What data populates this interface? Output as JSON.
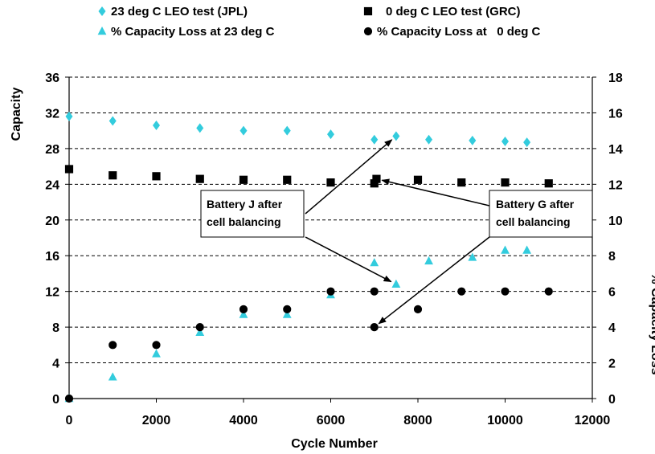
{
  "chart_data": {
    "type": "scatter",
    "xlabel": "Cycle Number",
    "ylabel": "Capacity",
    "y2label": "% Capacity Loss",
    "xlim": [
      0,
      12000
    ],
    "ylim": [
      0,
      36
    ],
    "y2lim": [
      0,
      18
    ],
    "x_ticks": [
      "0",
      "2000",
      "4000",
      "6000",
      "8000",
      "10000",
      "12000"
    ],
    "y_ticks": [
      "0",
      "4",
      "8",
      "12",
      "16",
      "20",
      "24",
      "28",
      "32",
      "36"
    ],
    "y2_ticks": [
      "0",
      "2",
      "4",
      "6",
      "8",
      "10",
      "12",
      "14",
      "16",
      "18"
    ],
    "grid": "horizontal dashed",
    "legend_position": "top",
    "series": [
      {
        "name": "23 deg C LEO test (JPL)",
        "axis": "left",
        "marker": "diamond",
        "color": "#33ccdd",
        "x": [
          0,
          1000,
          2000,
          3000,
          4000,
          5000,
          6000,
          7000,
          7500,
          8250,
          9250,
          10000,
          10500
        ],
        "y": [
          31.6,
          31.1,
          30.6,
          30.3,
          30.0,
          30.0,
          29.6,
          29.0,
          29.4,
          29.0,
          28.9,
          28.8,
          28.7
        ]
      },
      {
        "name": "0 deg C LEO test (GRC)",
        "axis": "left",
        "marker": "square",
        "color": "#000000",
        "x": [
          0,
          1000,
          2000,
          3000,
          4000,
          5000,
          6000,
          7000,
          7050,
          8000,
          9000,
          10000,
          11000
        ],
        "y": [
          25.7,
          25.0,
          24.9,
          24.6,
          24.5,
          24.5,
          24.2,
          24.1,
          24.6,
          24.5,
          24.2,
          24.2,
          24.1
        ]
      },
      {
        "name": "% Capacity Loss at 23 deg C",
        "axis": "right",
        "marker": "triangle",
        "color": "#33ccdd",
        "x": [
          0,
          1000,
          2000,
          3000,
          4000,
          5000,
          6000,
          7000,
          7500,
          8250,
          9250,
          10000,
          10500
        ],
        "y": [
          0,
          1.2,
          2.5,
          3.7,
          4.7,
          4.7,
          5.8,
          7.6,
          6.4,
          7.7,
          7.9,
          8.3,
          8.3
        ]
      },
      {
        "name": "% Capacity Loss at   0 deg C",
        "axis": "right",
        "marker": "circle",
        "color": "#000000",
        "x": [
          0,
          1000,
          2000,
          3000,
          4000,
          5000,
          6000,
          7000,
          7000,
          8000,
          9000,
          10000,
          11000
        ],
        "y": [
          0,
          3,
          3,
          4,
          5,
          5,
          6,
          6,
          4,
          5,
          6,
          6,
          6
        ]
      }
    ],
    "annotations": [
      {
        "lines": [
          "Battery J after",
          "cell balancing"
        ],
        "position": "left-center",
        "arrows_to": [
          {
            "axis": "left",
            "x": 7500,
            "y": 29.4
          },
          {
            "axis": "right",
            "x": 7500,
            "y": 6.4
          }
        ]
      },
      {
        "lines": [
          "Battery G after",
          "cell balancing"
        ],
        "position": "right-center",
        "arrows_to": [
          {
            "axis": "left",
            "x": 7050,
            "y": 24.6
          },
          {
            "axis": "right",
            "x": 7000,
            "y": 4
          }
        ]
      }
    ]
  }
}
